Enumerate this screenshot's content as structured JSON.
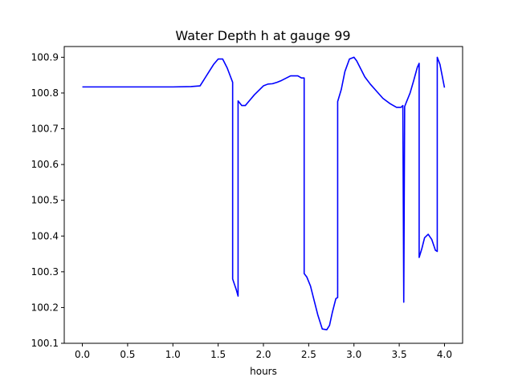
{
  "chart_data": {
    "type": "line",
    "title": "Water Depth h at gauge 99",
    "xlabel": "hours",
    "ylabel": "",
    "xlim": [
      -0.2,
      4.2
    ],
    "ylim": [
      100.1,
      100.93
    ],
    "xticks": [
      0.0,
      0.5,
      1.0,
      1.5,
      2.0,
      2.5,
      3.0,
      3.5,
      4.0
    ],
    "xtick_labels": [
      "0.0",
      "0.5",
      "1.0",
      "1.5",
      "2.0",
      "2.5",
      "3.0",
      "3.5",
      "4.0"
    ],
    "yticks": [
      100.1,
      100.2,
      100.3,
      100.4,
      100.5,
      100.6,
      100.7,
      100.8,
      100.9
    ],
    "ytick_labels": [
      "100.1",
      "100.2",
      "100.3",
      "100.4",
      "100.5",
      "100.6",
      "100.7",
      "100.8",
      "100.9"
    ],
    "grid": false,
    "legend": "none",
    "color": "#0000ff",
    "series": [
      {
        "x": [
          0.0,
          0.5,
          1.0,
          1.2,
          1.3,
          1.35,
          1.4,
          1.45,
          1.5,
          1.55,
          1.6,
          1.66,
          1.66,
          1.7,
          1.72,
          1.72,
          1.76,
          1.8,
          1.85,
          1.9,
          2.0,
          2.05,
          2.1,
          2.15,
          2.2,
          2.3,
          2.38,
          2.42,
          2.45,
          2.45,
          2.48,
          2.52,
          2.56,
          2.6,
          2.65,
          2.7,
          2.73,
          2.76,
          2.8,
          2.82,
          2.82,
          2.86,
          2.9,
          2.95,
          3.0,
          3.03,
          3.07,
          3.12,
          3.18,
          3.25,
          3.32,
          3.4,
          3.47,
          3.52,
          3.54,
          3.55,
          3.56,
          3.58,
          3.62,
          3.66,
          3.7,
          3.72,
          3.72,
          3.75,
          3.78,
          3.82,
          3.86,
          3.9,
          3.92,
          3.92,
          3.95,
          4.0
        ],
        "y": [
          100.817,
          100.817,
          100.817,
          100.818,
          100.82,
          100.84,
          100.86,
          100.88,
          100.895,
          100.895,
          100.87,
          100.83,
          100.28,
          100.25,
          100.232,
          100.778,
          100.765,
          100.765,
          100.78,
          100.795,
          100.82,
          100.825,
          100.826,
          100.83,
          100.835,
          100.848,
          100.848,
          100.842,
          100.842,
          100.295,
          100.285,
          100.26,
          100.22,
          100.18,
          100.14,
          100.138,
          100.15,
          100.185,
          100.225,
          100.228,
          100.776,
          100.81,
          100.86,
          100.895,
          100.9,
          100.89,
          100.87,
          100.845,
          100.825,
          100.805,
          100.785,
          100.77,
          100.76,
          100.76,
          100.765,
          100.215,
          100.762,
          100.775,
          100.8,
          100.835,
          100.872,
          100.883,
          100.34,
          100.365,
          100.395,
          100.405,
          100.39,
          100.36,
          100.357,
          100.9,
          100.88,
          100.815
        ]
      }
    ]
  }
}
